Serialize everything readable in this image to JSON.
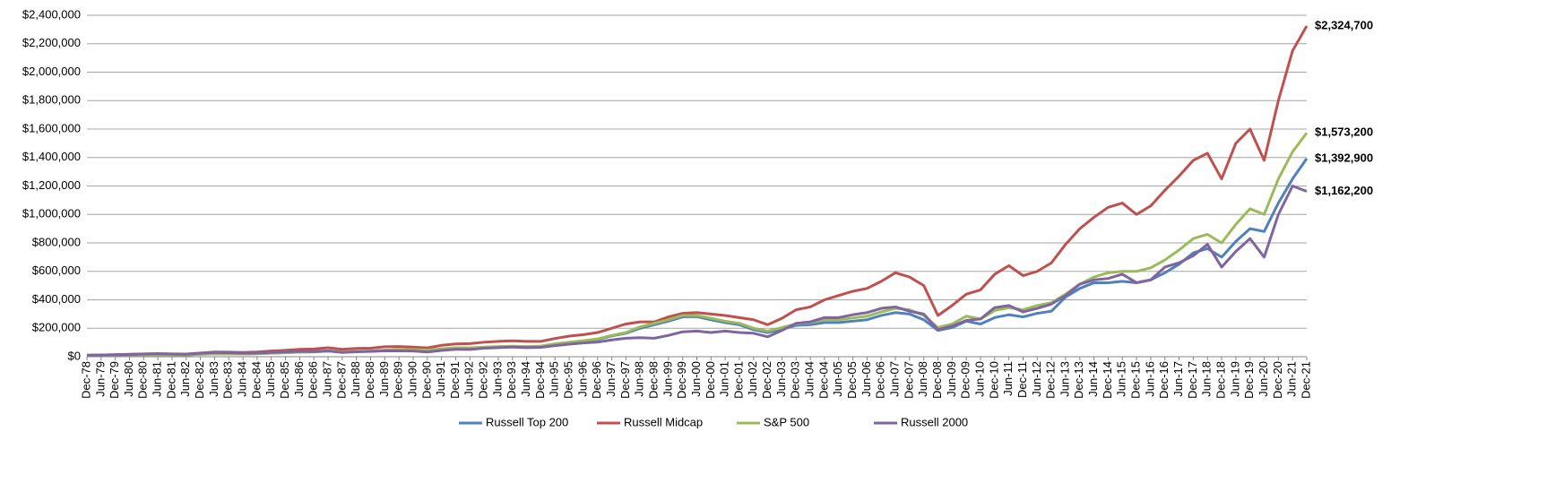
{
  "chart_data": {
    "type": "line",
    "categories": [
      "Dec-78",
      "Jun-79",
      "Dec-79",
      "Jun-80",
      "Dec-80",
      "Jun-81",
      "Dec-81",
      "Jun-82",
      "Dec-82",
      "Jun-83",
      "Dec-83",
      "Jun-84",
      "Dec-84",
      "Jun-85",
      "Dec-85",
      "Jun-86",
      "Dec-86",
      "Jun-87",
      "Dec-87",
      "Jun-88",
      "Dec-88",
      "Jun-89",
      "Dec-89",
      "Jun-90",
      "Dec-90",
      "Jun-91",
      "Dec-91",
      "Jun-92",
      "Dec-92",
      "Jun-93",
      "Dec-93",
      "Jun-94",
      "Dec-94",
      "Jun-95",
      "Dec-95",
      "Jun-96",
      "Dec-96",
      "Jun-97",
      "Dec-97",
      "Jun-98",
      "Dec-98",
      "Jun-99",
      "Dec-99",
      "Jun-00",
      "Dec-00",
      "Jun-01",
      "Dec-01",
      "Jun-02",
      "Dec-02",
      "Jun-03",
      "Dec-03",
      "Jun-04",
      "Dec-04",
      "Jun-05",
      "Dec-05",
      "Jun-06",
      "Dec-06",
      "Jun-07",
      "Dec-07",
      "Jun-08",
      "Dec-08",
      "Jun-09",
      "Dec-09",
      "Jun-10",
      "Dec-10",
      "Jun-11",
      "Dec-11",
      "Jun-12",
      "Dec-12",
      "Jun-13",
      "Dec-13",
      "Jun-14",
      "Dec-14",
      "Jun-15",
      "Dec-15",
      "Jun-16",
      "Dec-16",
      "Jun-17",
      "Dec-17",
      "Jun-18",
      "Dec-18",
      "Jun-19",
      "Dec-19",
      "Jun-20",
      "Dec-20",
      "Jun-21",
      "Dec-21"
    ],
    "series": [
      {
        "name": "Russell Top 200",
        "color": "#4f81bd",
        "values": [
          10000,
          11000,
          12000,
          13000,
          15000,
          14000,
          14000,
          13000,
          17000,
          20000,
          20000,
          19000,
          21000,
          25000,
          28000,
          32000,
          34000,
          40000,
          34000,
          37000,
          39000,
          46000,
          50000,
          49000,
          46000,
          55000,
          62000,
          61000,
          66000,
          69000,
          71000,
          70000,
          73000,
          89000,
          100000,
          110000,
          122000,
          146000,
          165000,
          200000,
          225000,
          250000,
          280000,
          282000,
          260000,
          240000,
          225000,
          190000,
          170000,
          195000,
          220000,
          225000,
          240000,
          240000,
          250000,
          260000,
          290000,
          310000,
          300000,
          260000,
          185000,
          205000,
          250000,
          230000,
          275000,
          295000,
          280000,
          305000,
          320000,
          420000,
          480000,
          520000,
          520000,
          530000,
          520000,
          540000,
          590000,
          650000,
          730000,
          760000,
          700000,
          810000,
          900000,
          880000,
          1080000,
          1250000,
          1392900
        ],
        "value_labels": [
          null,
          null,
          null,
          null,
          null,
          null,
          null,
          null,
          null,
          null,
          null,
          null,
          null,
          null,
          null,
          null,
          null,
          null,
          null,
          null,
          null,
          null,
          null,
          null,
          null,
          null,
          null,
          null,
          null,
          null,
          null,
          null,
          null,
          null,
          null,
          null,
          null,
          null,
          null,
          null,
          null,
          null,
          null,
          null,
          null,
          null,
          null,
          null,
          null,
          null,
          null,
          null,
          null,
          null,
          null,
          null,
          null,
          null,
          null,
          null,
          null,
          null,
          null,
          null,
          null,
          null,
          null,
          null,
          null,
          null,
          null,
          null,
          null,
          null,
          null,
          null,
          null,
          null,
          null,
          null,
          null,
          null,
          null,
          null,
          null,
          null,
          "$1,392,900"
        ]
      },
      {
        "name": "Russell Midcap",
        "color": "#c0504d",
        "values": [
          10000,
          12000,
          14000,
          17000,
          20000,
          21000,
          20000,
          19000,
          26000,
          33000,
          32000,
          30000,
          33000,
          40000,
          45000,
          52000,
          54000,
          63000,
          52000,
          58000,
          60000,
          70000,
          72000,
          68000,
          62000,
          80000,
          90000,
          92000,
          102000,
          108000,
          112000,
          108000,
          108000,
          128000,
          145000,
          155000,
          170000,
          200000,
          230000,
          245000,
          245000,
          280000,
          305000,
          310000,
          300000,
          290000,
          275000,
          260000,
          225000,
          270000,
          330000,
          350000,
          400000,
          430000,
          460000,
          480000,
          530000,
          590000,
          560000,
          500000,
          290000,
          360000,
          440000,
          470000,
          580000,
          640000,
          570000,
          600000,
          660000,
          790000,
          900000,
          980000,
          1050000,
          1080000,
          1000000,
          1060000,
          1170000,
          1270000,
          1380000,
          1430000,
          1250000,
          1500000,
          1600000,
          1380000,
          1800000,
          2150000,
          2324700
        ],
        "value_labels": [
          null,
          null,
          null,
          null,
          null,
          null,
          null,
          null,
          null,
          null,
          null,
          null,
          null,
          null,
          null,
          null,
          null,
          null,
          null,
          null,
          null,
          null,
          null,
          null,
          null,
          null,
          null,
          null,
          null,
          null,
          null,
          null,
          null,
          null,
          null,
          null,
          null,
          null,
          null,
          null,
          null,
          null,
          null,
          null,
          null,
          null,
          null,
          null,
          null,
          null,
          null,
          null,
          null,
          null,
          null,
          null,
          null,
          null,
          null,
          null,
          null,
          null,
          null,
          null,
          null,
          null,
          null,
          null,
          null,
          null,
          null,
          null,
          null,
          null,
          null,
          null,
          null,
          null,
          null,
          null,
          null,
          null,
          null,
          null,
          null,
          null,
          "$2,324,700"
        ]
      },
      {
        "name": "S&P 500",
        "color": "#9bbb59",
        "values": [
          10000,
          11000,
          12000,
          13000,
          15000,
          14000,
          14000,
          13000,
          17000,
          20000,
          20000,
          19000,
          21000,
          25000,
          28000,
          32000,
          34000,
          40000,
          34000,
          37000,
          39000,
          46000,
          50000,
          50000,
          47000,
          56000,
          63000,
          62000,
          68000,
          72000,
          74000,
          72000,
          75000,
          91000,
          102000,
          113000,
          125000,
          150000,
          170000,
          210000,
          235000,
          260000,
          290000,
          290000,
          270000,
          250000,
          235000,
          200000,
          180000,
          205000,
          230000,
          240000,
          260000,
          260000,
          272000,
          285000,
          315000,
          340000,
          330000,
          290000,
          205000,
          230000,
          285000,
          265000,
          325000,
          345000,
          330000,
          360000,
          380000,
          440000,
          510000,
          560000,
          590000,
          600000,
          600000,
          625000,
          680000,
          750000,
          830000,
          860000,
          800000,
          930000,
          1040000,
          1000000,
          1250000,
          1440000,
          1573200
        ],
        "value_labels": [
          null,
          null,
          null,
          null,
          null,
          null,
          null,
          null,
          null,
          null,
          null,
          null,
          null,
          null,
          null,
          null,
          null,
          null,
          null,
          null,
          null,
          null,
          null,
          null,
          null,
          null,
          null,
          null,
          null,
          null,
          null,
          null,
          null,
          null,
          null,
          null,
          null,
          null,
          null,
          null,
          null,
          null,
          null,
          null,
          null,
          null,
          null,
          null,
          null,
          null,
          null,
          null,
          null,
          null,
          null,
          null,
          null,
          null,
          null,
          null,
          null,
          null,
          null,
          null,
          null,
          null,
          null,
          null,
          null,
          null,
          null,
          null,
          null,
          null,
          null,
          null,
          null,
          null,
          null,
          null,
          null,
          null,
          null,
          null,
          null,
          null,
          "$1,573,200"
        ]
      },
      {
        "name": "Russell 2000",
        "color": "#8064a2",
        "values": [
          10000,
          12000,
          14000,
          16000,
          19000,
          21000,
          19000,
          17000,
          24000,
          30000,
          28000,
          25000,
          26000,
          30000,
          34000,
          38000,
          36000,
          41000,
          30000,
          35000,
          37000,
          42000,
          41000,
          40000,
          33000,
          44000,
          52000,
          51000,
          60000,
          64000,
          68000,
          64000,
          66000,
          78000,
          88000,
          97000,
          103000,
          118000,
          130000,
          134000,
          130000,
          150000,
          175000,
          180000,
          170000,
          180000,
          170000,
          165000,
          140000,
          185000,
          235000,
          245000,
          275000,
          275000,
          295000,
          310000,
          340000,
          350000,
          320000,
          300000,
          190000,
          215000,
          255000,
          265000,
          345000,
          360000,
          315000,
          340000,
          370000,
          430000,
          510000,
          540000,
          550000,
          580000,
          520000,
          540000,
          630000,
          660000,
          710000,
          790000,
          630000,
          740000,
          830000,
          700000,
          1000000,
          1200000,
          1162200
        ],
        "value_labels": [
          null,
          null,
          null,
          null,
          null,
          null,
          null,
          null,
          null,
          null,
          null,
          null,
          null,
          null,
          null,
          null,
          null,
          null,
          null,
          null,
          null,
          null,
          null,
          null,
          null,
          null,
          null,
          null,
          null,
          null,
          null,
          null,
          null,
          null,
          null,
          null,
          null,
          null,
          null,
          null,
          null,
          null,
          null,
          null,
          null,
          null,
          null,
          null,
          null,
          null,
          null,
          null,
          null,
          null,
          null,
          null,
          null,
          null,
          null,
          null,
          null,
          null,
          null,
          null,
          null,
          null,
          null,
          null,
          null,
          null,
          null,
          null,
          null,
          null,
          null,
          null,
          null,
          null,
          null,
          null,
          null,
          null,
          null,
          null,
          null,
          null,
          "$1,162,200"
        ]
      }
    ],
    "ylim": [
      0,
      2400000
    ],
    "yticks": [
      {
        "value": 0,
        "label": "$0"
      },
      {
        "value": 200000,
        "label": "$200,000"
      },
      {
        "value": 400000,
        "label": "$400,000"
      },
      {
        "value": 600000,
        "label": "$600,000"
      },
      {
        "value": 800000,
        "label": "$800,000"
      },
      {
        "value": 1000000,
        "label": "$1,000,000"
      },
      {
        "value": 1200000,
        "label": "$1,200,000"
      },
      {
        "value": 1400000,
        "label": "$1,400,000"
      },
      {
        "value": 1600000,
        "label": "$1,600,000"
      },
      {
        "value": 1800000,
        "label": "$1,800,000"
      },
      {
        "value": 2000000,
        "label": "$2,000,000"
      },
      {
        "value": 2200000,
        "label": "$2,200,000"
      },
      {
        "value": 2400000,
        "label": "$2,400,000"
      }
    ],
    "grid": true,
    "legend": "bottom"
  }
}
